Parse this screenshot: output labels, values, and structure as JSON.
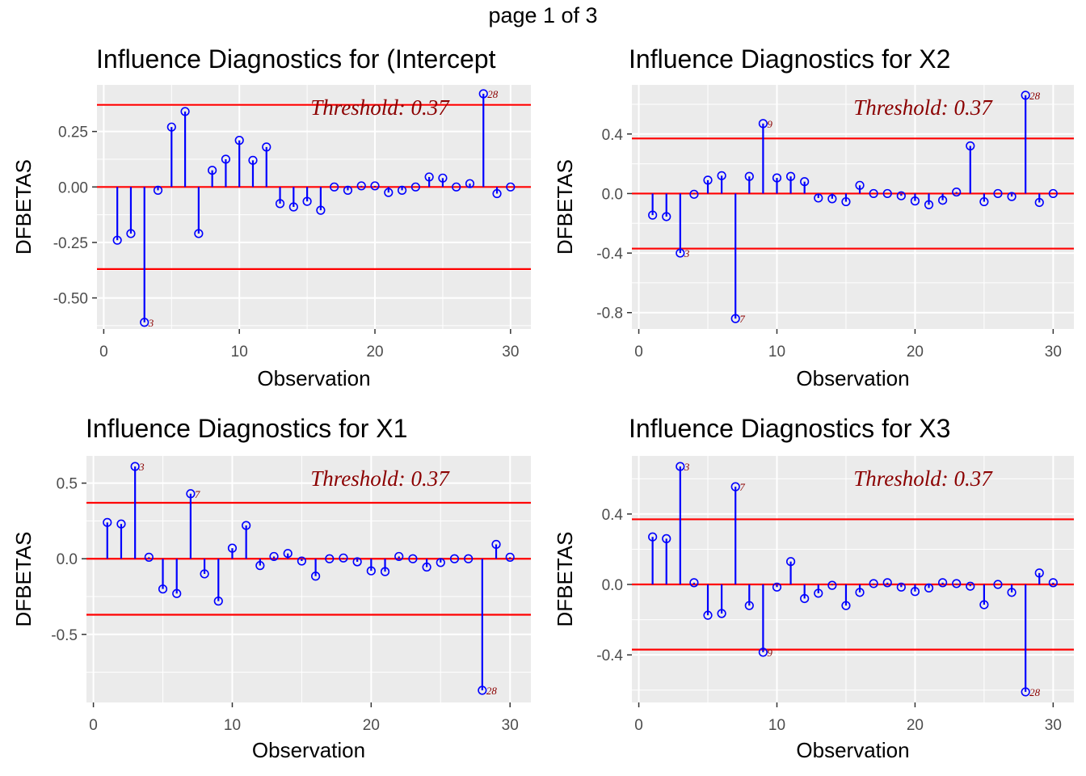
{
  "page_label": "page 1 of 3",
  "colors": {
    "stem": "#0000ff",
    "point": "#0000ff",
    "threshold_line": "#ff0000",
    "annotation": "#8b0000",
    "panel_bg": "#ebebeb",
    "grid": "#ffffff"
  },
  "chart_data": [
    {
      "type": "scatter",
      "title": "Influence Diagnostics for (Intercept",
      "xlabel": "Observation",
      "ylabel": "DFBETAS",
      "threshold_label": "Threshold: 0.37",
      "threshold": 0.37,
      "xlim": [
        -0.5,
        31.5
      ],
      "ylim": [
        -0.64,
        0.46
      ],
      "xticks": [
        0,
        10,
        20,
        30
      ],
      "yticks": [
        0.25,
        0.0,
        -0.25,
        -0.5
      ],
      "ytick_labels": [
        "0.25",
        "0.00",
        "-0.25",
        "-0.50"
      ],
      "x": [
        1,
        2,
        3,
        4,
        5,
        6,
        7,
        8,
        9,
        10,
        11,
        12,
        13,
        14,
        15,
        16,
        17,
        18,
        19,
        20,
        21,
        22,
        23,
        24,
        25,
        26,
        27,
        28,
        29,
        30
      ],
      "values": [
        -0.24,
        -0.21,
        -0.61,
        -0.015,
        0.27,
        0.34,
        -0.21,
        0.075,
        0.125,
        0.21,
        0.12,
        0.18,
        -0.075,
        -0.09,
        -0.065,
        -0.105,
        0.0,
        -0.015,
        0.005,
        0.005,
        -0.025,
        -0.015,
        0.0,
        0.045,
        0.04,
        0.0,
        0.015,
        0.42,
        -0.03,
        0.0
      ],
      "labels": [
        {
          "x": 3,
          "text": "3"
        },
        {
          "x": 28,
          "text": "28"
        }
      ]
    },
    {
      "type": "scatter",
      "title": "Influence Diagnostics for X2",
      "xlabel": "Observation",
      "ylabel": "DFBETAS",
      "threshold_label": "Threshold: 0.37",
      "threshold": 0.37,
      "xlim": [
        -0.5,
        31.5
      ],
      "ylim": [
        -0.91,
        0.73
      ],
      "xticks": [
        0,
        10,
        20,
        30
      ],
      "yticks": [
        0.4,
        0.0,
        -0.4,
        -0.8
      ],
      "ytick_labels": [
        "0.4",
        "0.0",
        "-0.4",
        "-0.8"
      ],
      "x": [
        1,
        2,
        3,
        4,
        5,
        6,
        7,
        8,
        9,
        10,
        11,
        12,
        13,
        14,
        15,
        16,
        17,
        18,
        19,
        20,
        21,
        22,
        23,
        24,
        25,
        26,
        27,
        28,
        29,
        30
      ],
      "values": [
        -0.145,
        -0.155,
        -0.4,
        -0.005,
        0.09,
        0.12,
        -0.84,
        0.115,
        0.47,
        0.105,
        0.115,
        0.08,
        -0.03,
        -0.035,
        -0.055,
        0.055,
        0.0,
        0.0,
        -0.015,
        -0.05,
        -0.075,
        -0.045,
        0.01,
        0.32,
        -0.055,
        0.0,
        -0.02,
        0.66,
        -0.06,
        0.0
      ],
      "labels": [
        {
          "x": 3,
          "text": "3"
        },
        {
          "x": 7,
          "text": "7"
        },
        {
          "x": 9,
          "text": "9"
        },
        {
          "x": 28,
          "text": "28"
        }
      ]
    },
    {
      "type": "scatter",
      "title": "Influence Diagnostics for X1",
      "xlabel": "Observation",
      "ylabel": "DFBETAS",
      "threshold_label": "Threshold: 0.37",
      "threshold": 0.37,
      "xlim": [
        -0.5,
        31.5
      ],
      "ylim": [
        -0.95,
        0.68
      ],
      "xticks": [
        0,
        10,
        20,
        30
      ],
      "yticks": [
        0.5,
        0.0,
        -0.5
      ],
      "ytick_labels": [
        "0.5",
        "0.0",
        "-0.5"
      ],
      "x": [
        1,
        2,
        3,
        4,
        5,
        6,
        7,
        8,
        9,
        10,
        11,
        12,
        13,
        14,
        15,
        16,
        17,
        18,
        19,
        20,
        21,
        22,
        23,
        24,
        25,
        26,
        27,
        28,
        29,
        30
      ],
      "values": [
        0.24,
        0.23,
        0.61,
        0.01,
        -0.2,
        -0.23,
        0.43,
        -0.1,
        -0.28,
        0.07,
        0.22,
        -0.045,
        0.015,
        0.035,
        -0.015,
        -0.115,
        0.0,
        0.005,
        -0.02,
        -0.08,
        -0.085,
        0.015,
        0.0,
        -0.055,
        -0.025,
        0.0,
        0.0,
        -0.87,
        0.095,
        0.01
      ],
      "labels": [
        {
          "x": 3,
          "text": "3"
        },
        {
          "x": 7,
          "text": "7"
        },
        {
          "x": 28,
          "text": "28"
        }
      ]
    },
    {
      "type": "scatter",
      "title": "Influence Diagnostics for X3",
      "xlabel": "Observation",
      "ylabel": "DFBETAS",
      "threshold_label": "Threshold: 0.37",
      "threshold": 0.37,
      "xlim": [
        -0.5,
        31.5
      ],
      "ylim": [
        -0.67,
        0.73
      ],
      "xticks": [
        0,
        10,
        20,
        30
      ],
      "yticks": [
        0.4,
        0.0,
        -0.4
      ],
      "ytick_labels": [
        "0.4",
        "0.0",
        "-0.4"
      ],
      "x": [
        1,
        2,
        3,
        4,
        5,
        6,
        7,
        8,
        9,
        10,
        11,
        12,
        13,
        14,
        15,
        16,
        17,
        18,
        19,
        20,
        21,
        22,
        23,
        24,
        25,
        26,
        27,
        28,
        29,
        30
      ],
      "values": [
        0.27,
        0.26,
        0.67,
        0.01,
        -0.175,
        -0.165,
        0.555,
        -0.12,
        -0.385,
        -0.015,
        0.13,
        -0.08,
        -0.05,
        -0.005,
        -0.12,
        -0.045,
        0.005,
        0.01,
        -0.015,
        -0.04,
        -0.02,
        0.01,
        0.005,
        -0.01,
        -0.115,
        0.0,
        -0.045,
        -0.61,
        0.065,
        0.01
      ],
      "labels": [
        {
          "x": 3,
          "text": "3"
        },
        {
          "x": 7,
          "text": "7"
        },
        {
          "x": 9,
          "text": "9"
        },
        {
          "x": 28,
          "text": "28"
        }
      ]
    }
  ]
}
